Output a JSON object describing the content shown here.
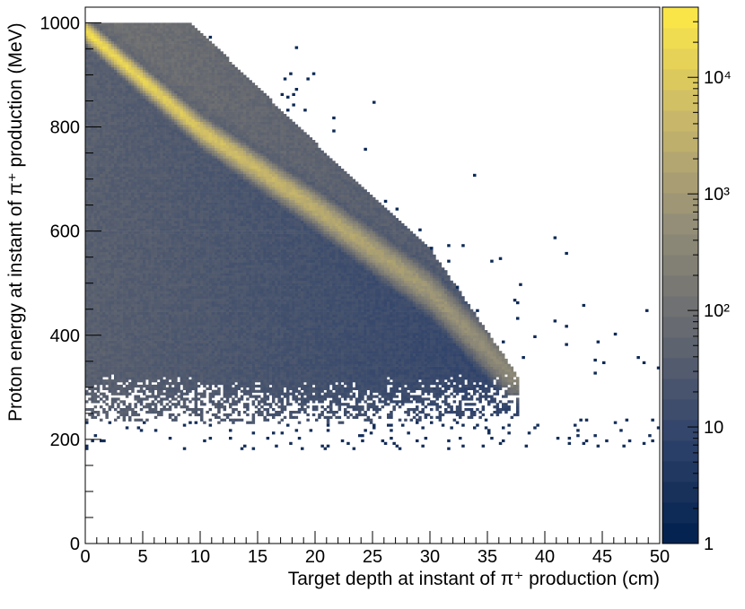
{
  "chart_data": {
    "type": "heatmap",
    "xlabel": "Target depth at instant of π⁺ production (cm)",
    "ylabel": "Proton energy at instant of π⁺ production (MeV)",
    "xlim": [
      0,
      50
    ],
    "ylim": [
      0,
      1030
    ],
    "x_ticks": [
      "0",
      "5",
      "10",
      "15",
      "20",
      "25",
      "30",
      "35",
      "40",
      "45",
      "50"
    ],
    "y_ticks": [
      "0",
      "200",
      "400",
      "600",
      "800",
      "1000"
    ],
    "colorbar": {
      "scale": "log",
      "range": [
        1,
        40000
      ],
      "tick_labels": [
        "1",
        "10",
        "10²",
        "10³",
        "10⁴"
      ],
      "tick_values": [
        1,
        10,
        100,
        1000,
        10000
      ],
      "palette": [
        "#00204d",
        "#31446b",
        "#666970",
        "#958f78",
        "#cbb969",
        "#ffea46"
      ]
    },
    "features": {
      "band_top_edge": [
        [
          0,
          995
        ],
        [
          9.2,
          995
        ],
        [
          20,
          765
        ],
        [
          30,
          560
        ],
        [
          37.5,
          320
        ]
      ],
      "band_peak_line": [
        [
          0,
          980
        ],
        [
          10,
          790
        ],
        [
          20,
          640
        ],
        [
          30,
          480
        ],
        [
          37,
          320
        ]
      ],
      "low_energy_cutoff": [
        [
          0,
          235
        ],
        [
          20,
          225
        ],
        [
          38,
          240
        ]
      ],
      "background_density": "high near x=0, decreasing with depth"
    }
  }
}
